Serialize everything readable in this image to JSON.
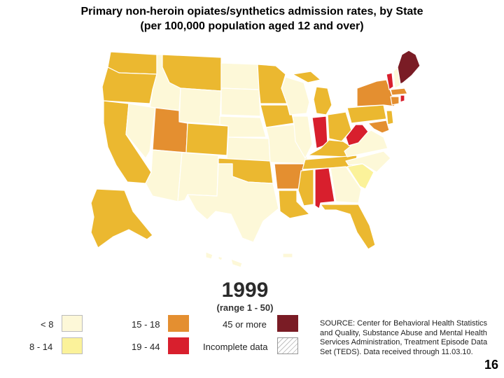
{
  "title": {
    "line1": "Primary non-heroin opiates/synthetics admission rates, by State",
    "line2": "(per 100,000 population aged 12 and over)"
  },
  "map": {
    "year": "1999",
    "range": "(range 1 - 50)"
  },
  "legend": {
    "items": [
      {
        "label": "< 8",
        "color": "#fdf8d8"
      },
      {
        "label": "8 - 14",
        "color": "#fbf29a"
      },
      {
        "label": "15 - 18",
        "color": "#e48f30"
      },
      {
        "label": "19 - 44",
        "color": "#d81f2d"
      },
      {
        "label": "45 or more",
        "color": "#7a1c25"
      },
      {
        "label": "Incomplete data",
        "color": "#ffffff",
        "pattern": "diagonal-hatch"
      }
    ]
  },
  "source": "SOURCE: Center for Behavioral Health Statistics and Quality, Substance Abuse and Mental Health Services Administration, Treatment Episode Data Set (TEDS). Data received through 11.03.10.",
  "page_number": "16",
  "colors": {
    "lightest": "#fdf8d8",
    "light": "#fbf29a",
    "mid": "#ebb830",
    "orange": "#e48f30",
    "red": "#d81f2d",
    "dark": "#7a1c25"
  }
}
